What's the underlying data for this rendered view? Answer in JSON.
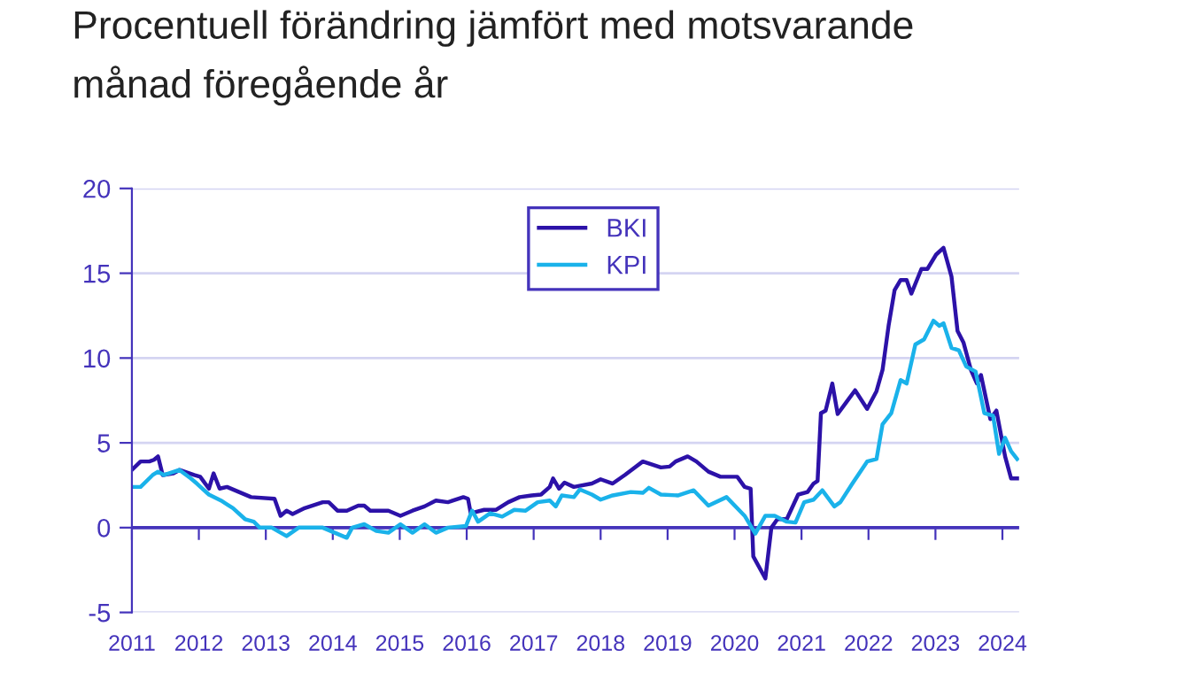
{
  "chart_data": {
    "type": "line",
    "title": "Procentuell förändring jämfört med motsvarande\nmånad föregående år",
    "xlim": [
      2011,
      2024.25
    ],
    "xticks": [
      2011,
      2012,
      2013,
      2014,
      2015,
      2016,
      2017,
      2018,
      2019,
      2020,
      2021,
      2022,
      2023,
      2024
    ],
    "ylim": [
      -5,
      20
    ],
    "yticks": [
      -5,
      0,
      5,
      10,
      15,
      20
    ],
    "grid": "y",
    "ref_lines": [
      {
        "axis": "y",
        "value": 0,
        "color": "#4433bb"
      }
    ],
    "legend": "top",
    "marker": "none",
    "line_style": "solid",
    "series": [
      {
        "name": "BKI",
        "color": "#2c12a8",
        "x": [
          2011.0,
          2011.13,
          2011.26,
          2011.33,
          2011.39,
          2011.46,
          2011.62,
          2011.71,
          2011.93,
          2012.02,
          2012.15,
          2012.22,
          2012.31,
          2012.42,
          2012.6,
          2012.78,
          2013.13,
          2013.22,
          2013.31,
          2013.4,
          2013.58,
          2013.85,
          2013.94,
          2014.07,
          2014.21,
          2014.38,
          2014.47,
          2014.56,
          2014.83,
          2015.01,
          2015.19,
          2015.37,
          2015.54,
          2015.72,
          2015.95,
          2016.02,
          2016.06,
          2016.26,
          2016.44,
          2016.62,
          2016.79,
          2016.97,
          2017.11,
          2017.24,
          2017.29,
          2017.38,
          2017.46,
          2017.6,
          2017.87,
          2018.0,
          2018.18,
          2018.36,
          2018.63,
          2018.9,
          2019.03,
          2019.12,
          2019.3,
          2019.43,
          2019.61,
          2019.79,
          2020.04,
          2020.15,
          2020.24,
          2020.28,
          2020.46,
          2020.55,
          2020.64,
          2020.78,
          2020.95,
          2021.09,
          2021.18,
          2021.24,
          2021.29,
          2021.36,
          2021.46,
          2021.54,
          2021.67,
          2021.8,
          2021.98,
          2022.12,
          2022.21,
          2022.3,
          2022.39,
          2022.48,
          2022.57,
          2022.64,
          2022.79,
          2022.88,
          2023.01,
          2023.12,
          2023.24,
          2023.33,
          2023.42,
          2023.53,
          2023.62,
          2023.68,
          2023.82,
          2023.91,
          2024.04,
          2024.13,
          2024.22
        ],
        "values": [
          3.4,
          3.9,
          3.9,
          4.0,
          4.2,
          3.1,
          3.2,
          3.4,
          3.1,
          3.0,
          2.3,
          3.2,
          2.3,
          2.4,
          2.1,
          1.8,
          1.7,
          0.7,
          1.0,
          0.8,
          1.15,
          1.5,
          1.5,
          1.0,
          1.0,
          1.3,
          1.3,
          1.0,
          1.0,
          0.7,
          1.0,
          1.25,
          1.6,
          1.5,
          1.8,
          1.7,
          0.85,
          1.05,
          1.05,
          1.5,
          1.8,
          1.9,
          1.95,
          2.4,
          2.9,
          2.3,
          2.65,
          2.4,
          2.6,
          2.85,
          2.6,
          3.1,
          3.9,
          3.55,
          3.6,
          3.9,
          4.2,
          3.9,
          3.3,
          3.0,
          3.0,
          2.4,
          2.3,
          -1.7,
          -3.0,
          0.0,
          0.5,
          0.5,
          1.95,
          2.1,
          2.6,
          2.75,
          6.75,
          6.9,
          8.5,
          6.7,
          7.4,
          8.1,
          7.0,
          8.05,
          9.3,
          11.9,
          14.0,
          14.6,
          14.6,
          13.8,
          15.25,
          15.25,
          16.1,
          16.5,
          14.8,
          11.6,
          10.9,
          9.3,
          8.5,
          9.0,
          6.4,
          6.9,
          4.2,
          2.9,
          2.9
        ]
      },
      {
        "name": "KPI",
        "color": "#1ab2ea",
        "x": [
          2011.0,
          2011.13,
          2011.31,
          2011.39,
          2011.48,
          2011.71,
          2011.88,
          2011.97,
          2012.15,
          2012.33,
          2012.51,
          2012.69,
          2012.82,
          2012.91,
          2013.09,
          2013.31,
          2013.49,
          2013.85,
          2014.03,
          2014.21,
          2014.29,
          2014.47,
          2014.65,
          2014.83,
          2015.01,
          2015.19,
          2015.37,
          2015.54,
          2015.72,
          2015.99,
          2016.08,
          2016.17,
          2016.35,
          2016.53,
          2016.71,
          2016.88,
          2017.06,
          2017.24,
          2017.33,
          2017.42,
          2017.6,
          2017.69,
          2017.87,
          2018.0,
          2018.18,
          2018.45,
          2018.63,
          2018.72,
          2018.9,
          2019.16,
          2019.39,
          2019.61,
          2019.88,
          2020.15,
          2020.31,
          2020.46,
          2020.6,
          2020.78,
          2020.91,
          2021.04,
          2021.18,
          2021.31,
          2021.49,
          2021.58,
          2021.76,
          2021.98,
          2022.12,
          2022.21,
          2022.34,
          2022.48,
          2022.57,
          2022.7,
          2022.83,
          2022.97,
          2023.06,
          2023.12,
          2023.24,
          2023.35,
          2023.46,
          2023.6,
          2023.73,
          2023.86,
          2023.95,
          2024.04,
          2024.13,
          2024.22
        ],
        "values": [
          2.4,
          2.4,
          3.1,
          3.3,
          3.1,
          3.4,
          2.9,
          2.6,
          1.95,
          1.6,
          1.15,
          0.5,
          0.35,
          0.0,
          0.0,
          -0.5,
          0.0,
          0.0,
          -0.3,
          -0.6,
          0.0,
          0.2,
          -0.2,
          -0.3,
          0.2,
          -0.3,
          0.2,
          -0.3,
          0.0,
          0.1,
          1.0,
          0.35,
          0.85,
          0.65,
          1.05,
          1.0,
          1.5,
          1.6,
          1.25,
          1.9,
          1.8,
          2.25,
          1.95,
          1.65,
          1.9,
          2.1,
          2.05,
          2.35,
          1.95,
          1.9,
          2.2,
          1.3,
          1.8,
          0.7,
          -0.35,
          0.7,
          0.7,
          0.35,
          0.3,
          1.5,
          1.65,
          2.2,
          1.25,
          1.5,
          2.6,
          3.9,
          4.05,
          6.1,
          6.75,
          8.7,
          8.5,
          10.8,
          11.1,
          12.2,
          11.9,
          12.05,
          10.6,
          10.45,
          9.5,
          9.2,
          6.75,
          6.6,
          4.35,
          5.3,
          4.5,
          4.05
        ]
      }
    ]
  }
}
